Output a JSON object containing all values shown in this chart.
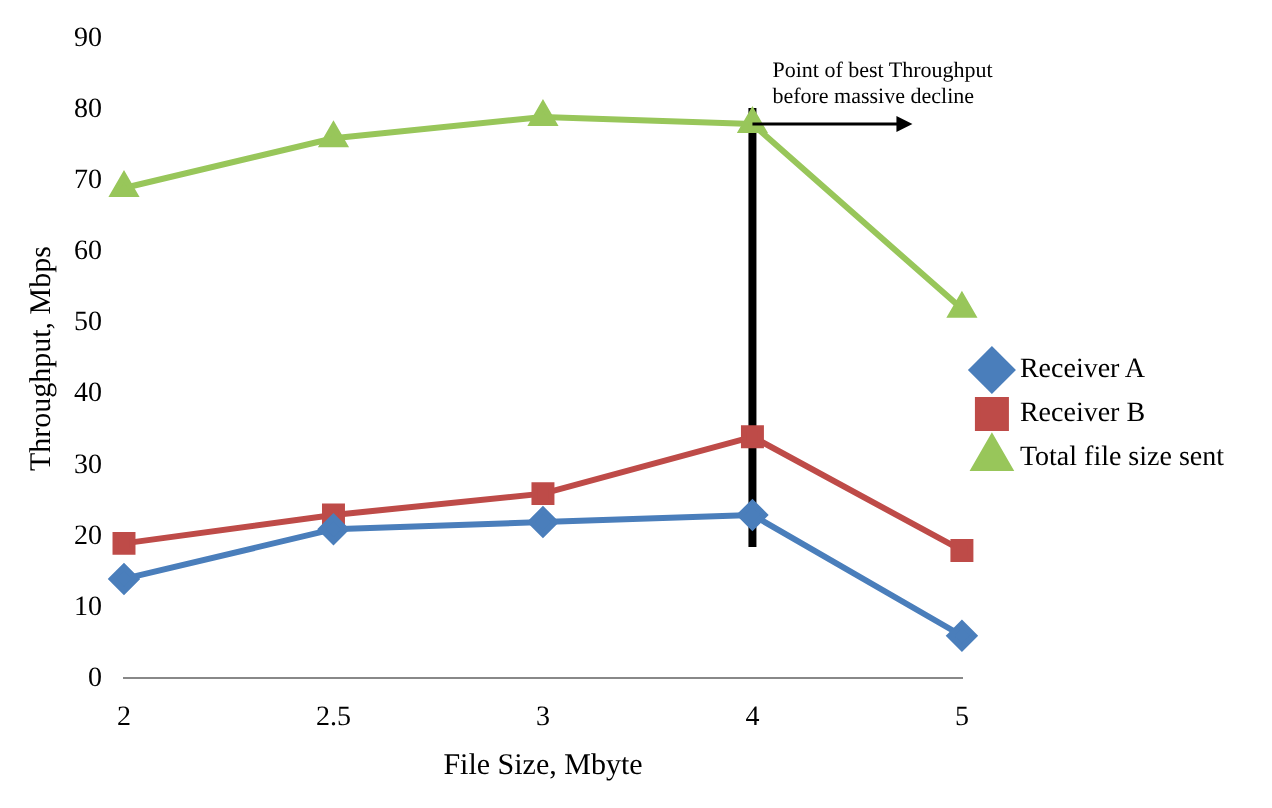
{
  "chart_data": {
    "type": "line",
    "xlabel": "File Size, Mbyte",
    "ylabel": "Throughput, Mbps",
    "categories": [
      "2",
      "2.5",
      "3",
      "4",
      "5"
    ],
    "series": [
      {
        "name": "Receiver A",
        "color": "#4a7ebb",
        "marker": "diamond",
        "values": [
          14,
          21,
          22,
          23,
          6
        ]
      },
      {
        "name": "Receiver B",
        "color": "#be4b48",
        "marker": "square",
        "values": [
          19,
          23,
          26,
          34,
          18
        ]
      },
      {
        "name": "Total file size sent",
        "color": "#98c65a",
        "marker": "triangle",
        "values": [
          69,
          76,
          79,
          78,
          52
        ]
      }
    ],
    "ylim": [
      0,
      90
    ],
    "yticks": [
      0,
      10,
      20,
      30,
      40,
      50,
      60,
      70,
      80,
      90
    ],
    "grid": false,
    "legend": "right",
    "annotations": [
      {
        "text": "Point of best Throughput before massive decline",
        "x": "4",
        "y": 78
      }
    ]
  }
}
